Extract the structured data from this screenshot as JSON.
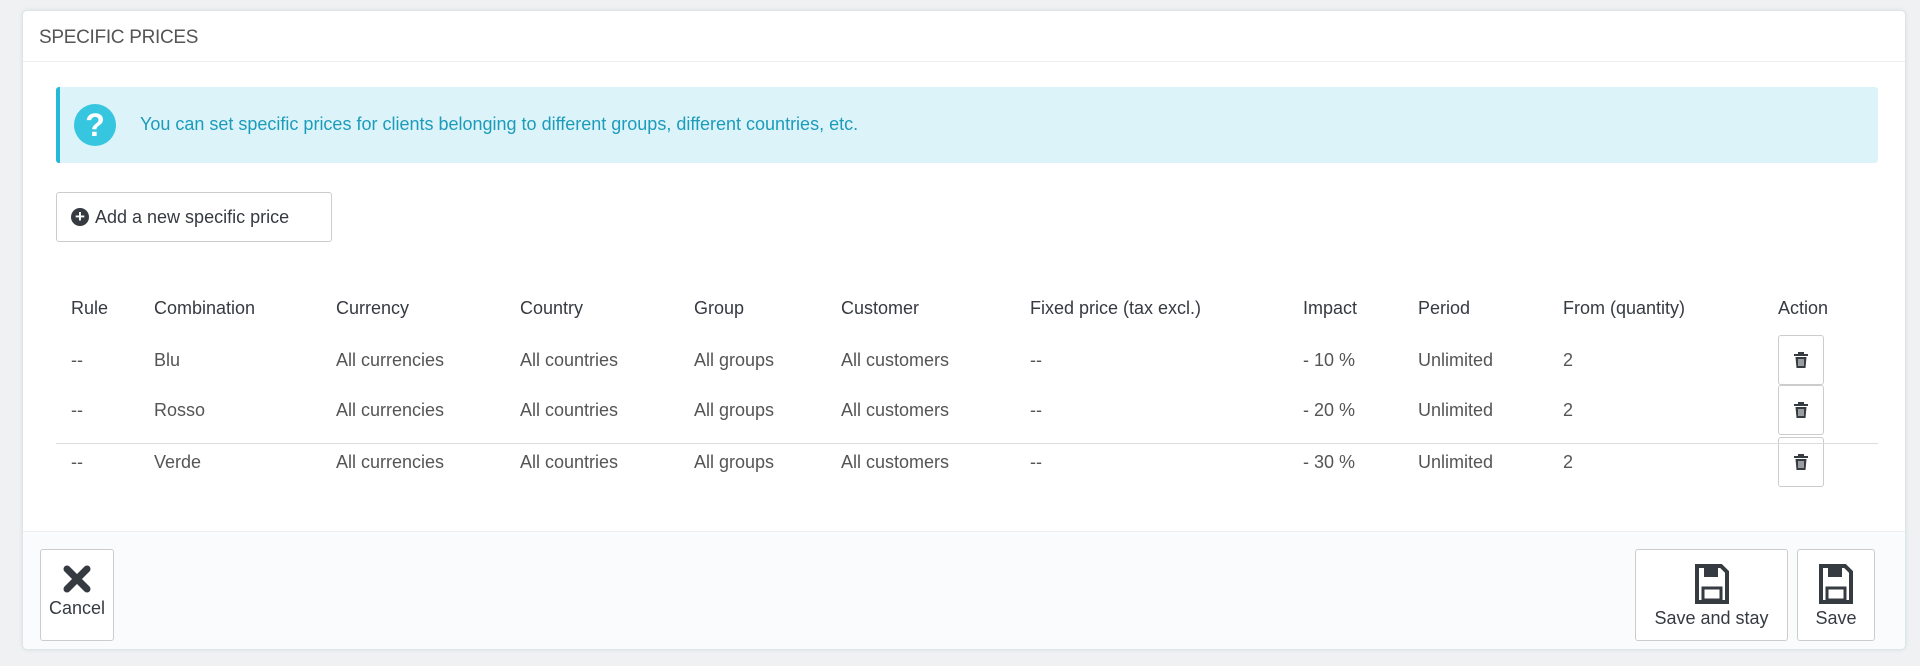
{
  "panel": {
    "title": "SPECIFIC PRICES"
  },
  "alert": {
    "icon": "question-circle-icon",
    "text": "You can set specific prices for clients belonging to different groups, different countries, etc."
  },
  "add_button": {
    "label": "Add a new specific price",
    "icon": "plus-circle-icon"
  },
  "table": {
    "headers": [
      "Rule",
      "Combination",
      "Currency",
      "Country",
      "Group",
      "Customer",
      "Fixed price (tax excl.)",
      "Impact",
      "Period",
      "From (quantity)",
      "Action"
    ],
    "rows": [
      [
        "--",
        "Blu",
        "All currencies",
        "All countries",
        "All groups",
        "All customers",
        "--",
        "- 10 %",
        "Unlimited",
        "2"
      ],
      [
        "--",
        "Rosso",
        "All currencies",
        "All countries",
        "All groups",
        "All customers",
        "--",
        "- 20 %",
        "Unlimited",
        "2"
      ],
      [
        "--",
        "Verde",
        "All currencies",
        "All countries",
        "All groups",
        "All customers",
        "--",
        "- 30 %",
        "Unlimited",
        "2"
      ]
    ]
  },
  "footer": {
    "cancel": "Cancel",
    "save_and_stay": "Save and stay",
    "save": "Save"
  },
  "colors": {
    "accent": "#25b9d7",
    "alert_bg": "#dcf4f9",
    "alert_text": "#1c9bbb"
  }
}
